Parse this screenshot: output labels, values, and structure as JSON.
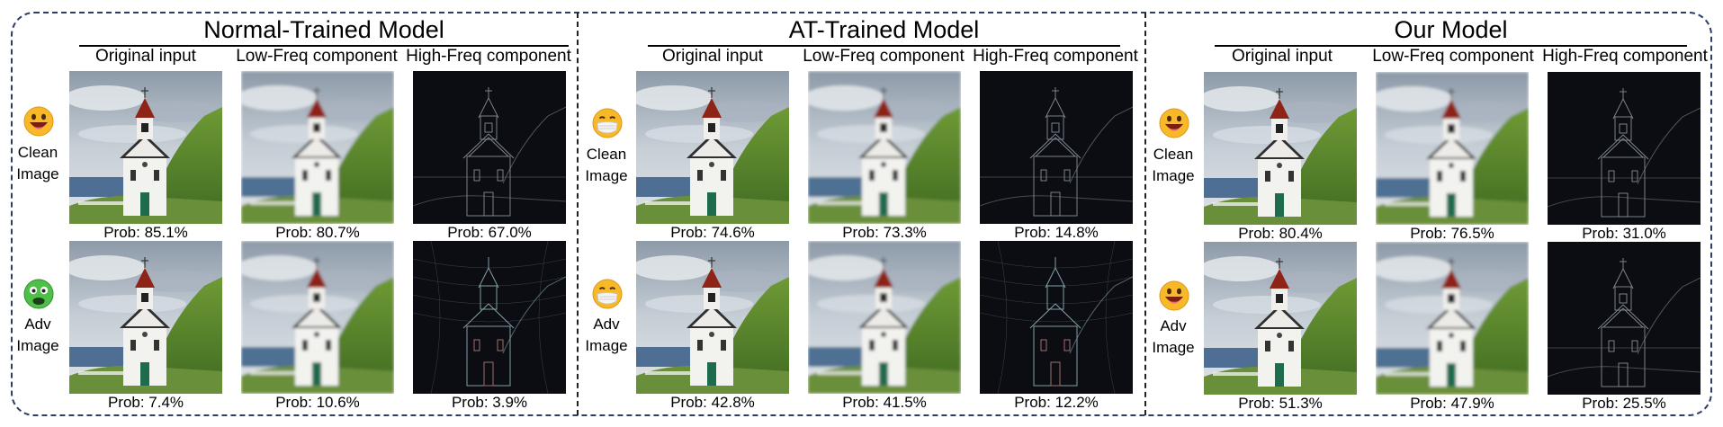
{
  "panels": [
    {
      "title": "Normal-Trained Model",
      "columns": [
        "Original input",
        "Low-Freq component",
        "High-Freq component"
      ],
      "rows": [
        {
          "label_line1": "Clean",
          "label_line2": "Image",
          "emoji": "grinning-face-icon",
          "probs": [
            "Prob: 85.1%",
            "Prob: 80.7%",
            "Prob: 67.0%"
          ]
        },
        {
          "label_line1": "Adv",
          "label_line2": "Image",
          "emoji": "nauseated-face-icon",
          "probs": [
            "Prob: 7.4%",
            "Prob: 10.6%",
            "Prob: 3.9%"
          ]
        }
      ]
    },
    {
      "title": "AT-Trained Model",
      "columns": [
        "Original input",
        "Low-Freq component",
        "High-Freq component"
      ],
      "rows": [
        {
          "label_line1": "Clean",
          "label_line2": "Image",
          "emoji": "face-with-mask-icon",
          "probs": [
            "Prob: 74.6%",
            "Prob: 73.3%",
            "Prob: 14.8%"
          ]
        },
        {
          "label_line1": "Adv",
          "label_line2": "Image",
          "emoji": "face-with-mask-icon",
          "probs": [
            "Prob: 42.8%",
            "Prob: 41.5%",
            "Prob: 12.2%"
          ]
        }
      ]
    },
    {
      "title": "Our Model",
      "columns": [
        "Original input",
        "Low-Freq component",
        "High-Freq component"
      ],
      "rows": [
        {
          "label_line1": "Clean",
          "label_line2": "Image",
          "emoji": "grinning-face-icon",
          "probs": [
            "Prob: 80.4%",
            "Prob: 76.5%",
            "Prob: 31.0%"
          ]
        },
        {
          "label_line1": "Adv",
          "label_line2": "Image",
          "emoji": "grinning-face-icon",
          "probs": [
            "Prob: 51.3%",
            "Prob: 47.9%",
            "Prob: 25.5%"
          ]
        }
      ]
    }
  ],
  "colors": {
    "frame": "#2c3e66",
    "sky": "#b9c4cf",
    "sea": "#4e6f93",
    "grass": "#5e8a2e",
    "roof": "#8e2418",
    "high_freq_bg": "#0b0d12"
  }
}
